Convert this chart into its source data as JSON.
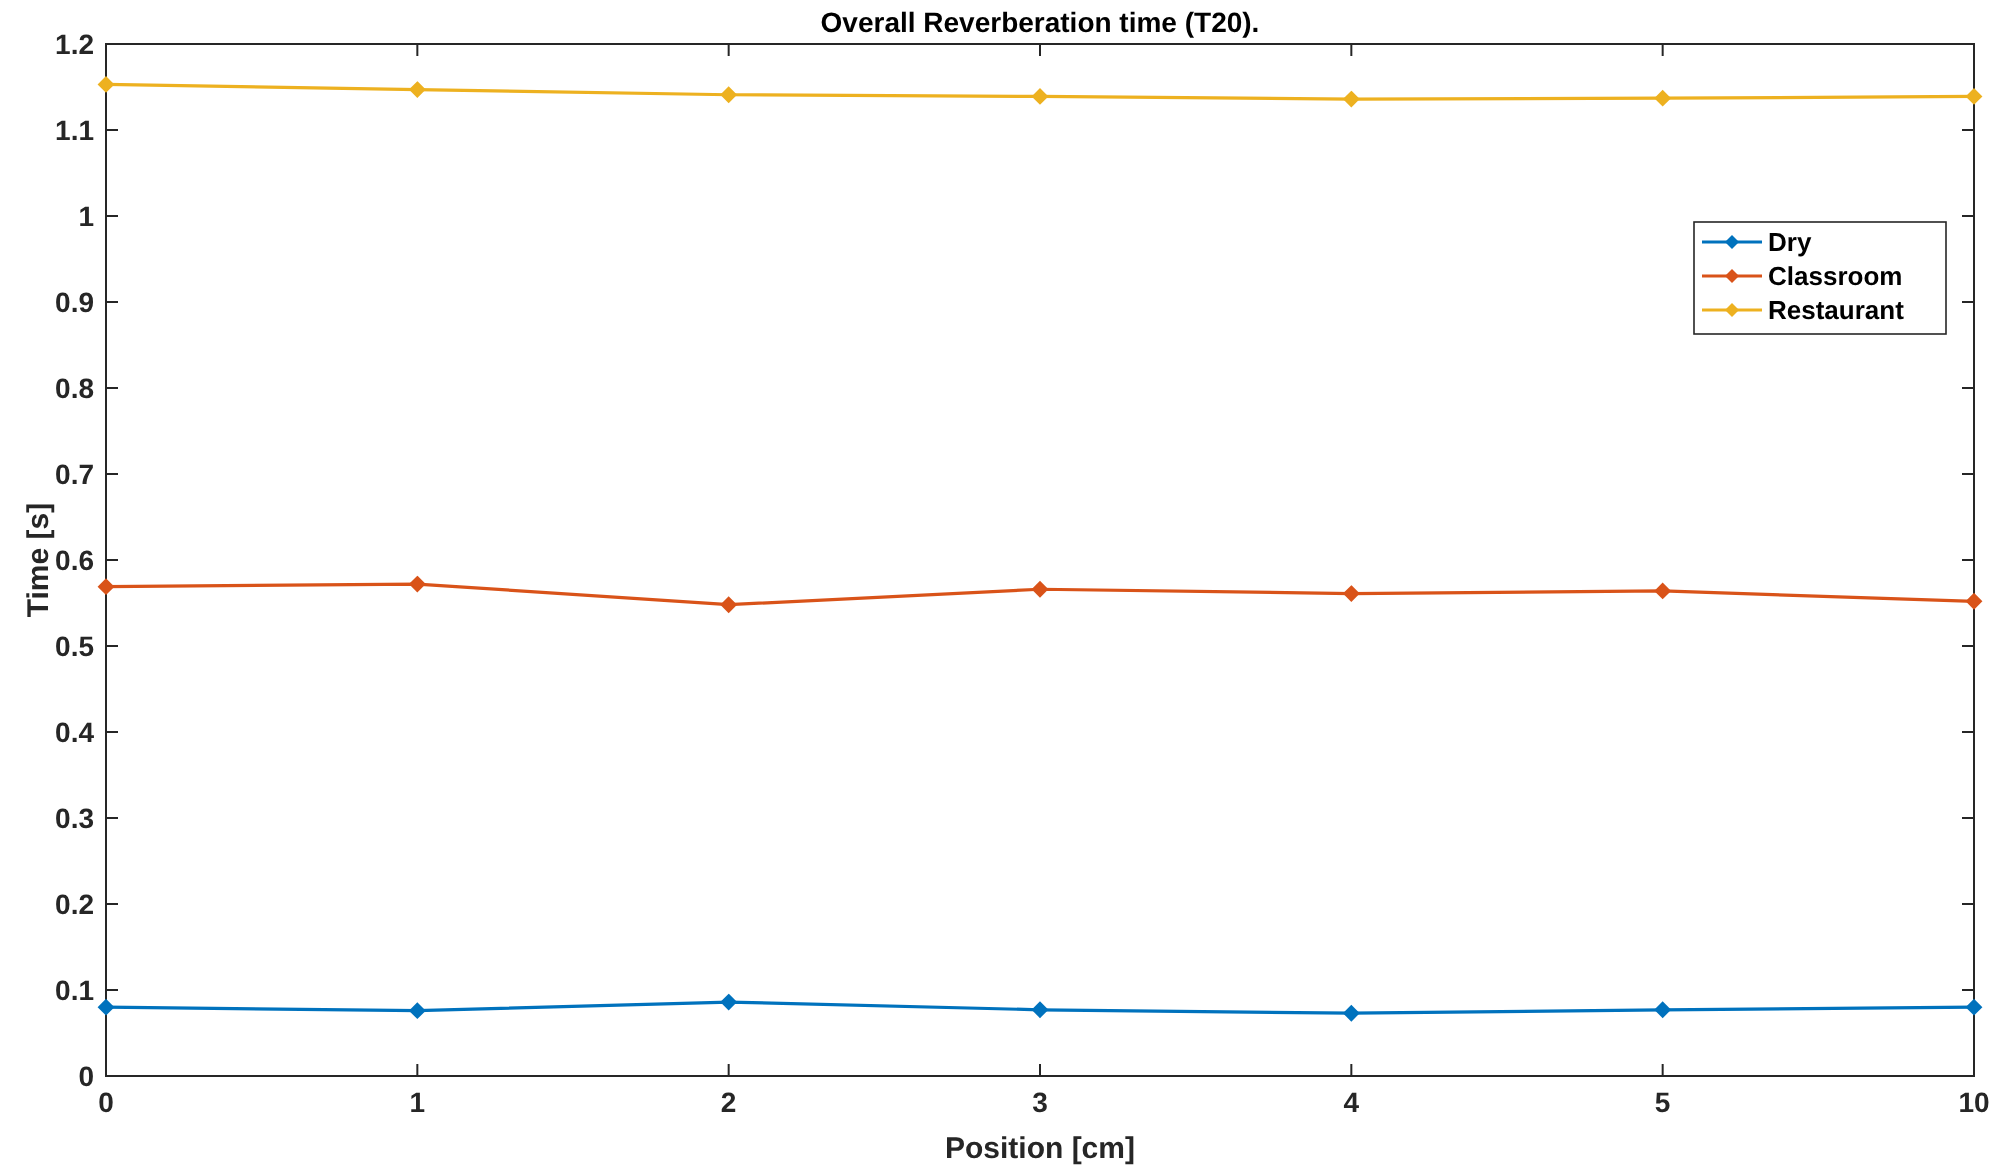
{
  "chart_data": {
    "type": "line",
    "title": "Overall Reverberation time (T20).",
    "xlabel": "Position [cm]",
    "ylabel": "Time [s]",
    "categories": [
      "0",
      "1",
      "2",
      "3",
      "4",
      "5",
      "10"
    ],
    "series": [
      {
        "name": "Dry",
        "color": "#0072bd",
        "values": [
          0.08,
          0.076,
          0.086,
          0.077,
          0.073,
          0.077,
          0.08
        ]
      },
      {
        "name": "Classroom",
        "color": "#d95319",
        "values": [
          0.569,
          0.572,
          0.548,
          0.566,
          0.561,
          0.564,
          0.552
        ]
      },
      {
        "name": "Restaurant",
        "color": "#edb120",
        "values": [
          1.153,
          1.147,
          1.141,
          1.139,
          1.136,
          1.137,
          1.139
        ]
      }
    ],
    "ylim": [
      0,
      1.2
    ],
    "yticks": [
      0,
      0.1,
      0.2,
      0.3,
      0.4,
      0.5,
      0.6,
      0.7,
      0.8,
      0.9,
      1,
      1.1,
      1.2
    ],
    "grid": false,
    "legend": "top right",
    "marker": "diamond",
    "line_style": "solid"
  }
}
